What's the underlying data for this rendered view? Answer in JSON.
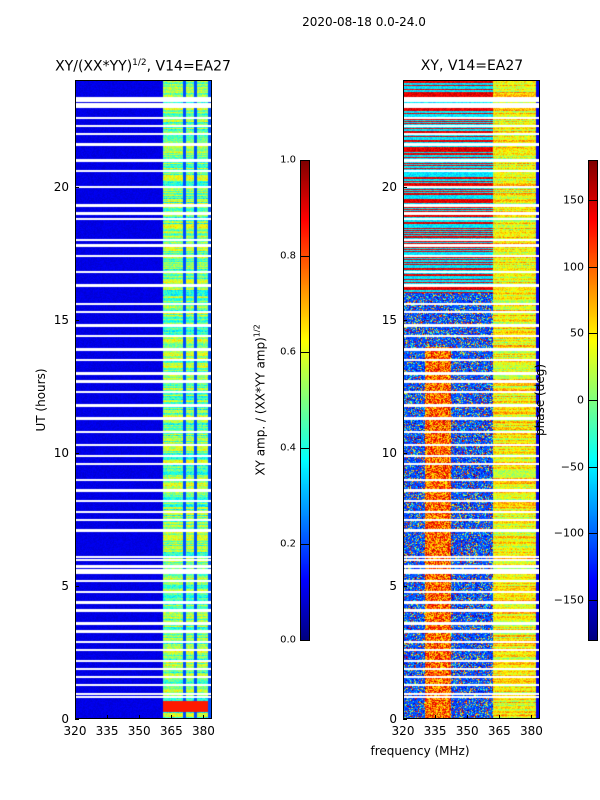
{
  "suptitle": "2020-08-18 0.0-24.0",
  "xlabel": "frequency (MHz)",
  "chart_data": [
    {
      "type": "heatmap",
      "title": "XY/(XX*YY)",
      "title_sup": "1/2",
      "title_suffix": ", V14=EA27",
      "xlabel": "",
      "ylabel": "UT (hours)",
      "xlim": [
        320,
        384
      ],
      "ylim": [
        0,
        24
      ],
      "xticks": [
        320,
        335,
        350,
        365,
        380
      ],
      "yticks": [
        0,
        5,
        10,
        15,
        20
      ],
      "colormap": "jet",
      "colorbar": {
        "label": "XY amp. / (XX*YY amp)",
        "label_sup": "1/2",
        "range": [
          0.0,
          1.0
        ],
        "ticks": [
          "0.0",
          "0.2",
          "0.4",
          "0.6",
          "0.8",
          "1.0"
        ]
      },
      "high_value_band_mhz": [
        361,
        382
      ],
      "background_value": 0.1
    },
    {
      "type": "heatmap",
      "title": "XY, V14=EA27",
      "xlabel": "",
      "ylabel": "",
      "xlim": [
        320,
        384
      ],
      "ylim": [
        0,
        24
      ],
      "xticks": [
        320,
        335,
        350,
        365,
        380
      ],
      "yticks": [
        0,
        5,
        10,
        15,
        20
      ],
      "colormap": "jet",
      "colorbar": {
        "label": "phase (deg)",
        "range": [
          -180,
          180
        ],
        "ticks": [
          "−150",
          "−100",
          "−50",
          "0",
          "50",
          "100",
          "150"
        ]
      }
    }
  ],
  "flagged_ut_hours": [
    0.85,
    0.95,
    1.3,
    1.6,
    1.9,
    2.2,
    2.6,
    2.9,
    3.3,
    3.6,
    4.1,
    4.4,
    4.8,
    5.2,
    5.5,
    5.6,
    5.75,
    6.0,
    6.1,
    7.1,
    7.5,
    7.8,
    8.2,
    8.6,
    9.0,
    9.6,
    9.9,
    10.3,
    10.8,
    11.3,
    11.8,
    12.3,
    12.7,
    13.0,
    13.5,
    13.9,
    14.4,
    14.8,
    15.3,
    15.6,
    16.3,
    16.8,
    17.4,
    17.8,
    18.0,
    18.8,
    19.0,
    19.3,
    20.0,
    20.6,
    21.0,
    21.6,
    22.0,
    22.3,
    22.6,
    23.0,
    23.1,
    23.25,
    23.35
  ]
}
